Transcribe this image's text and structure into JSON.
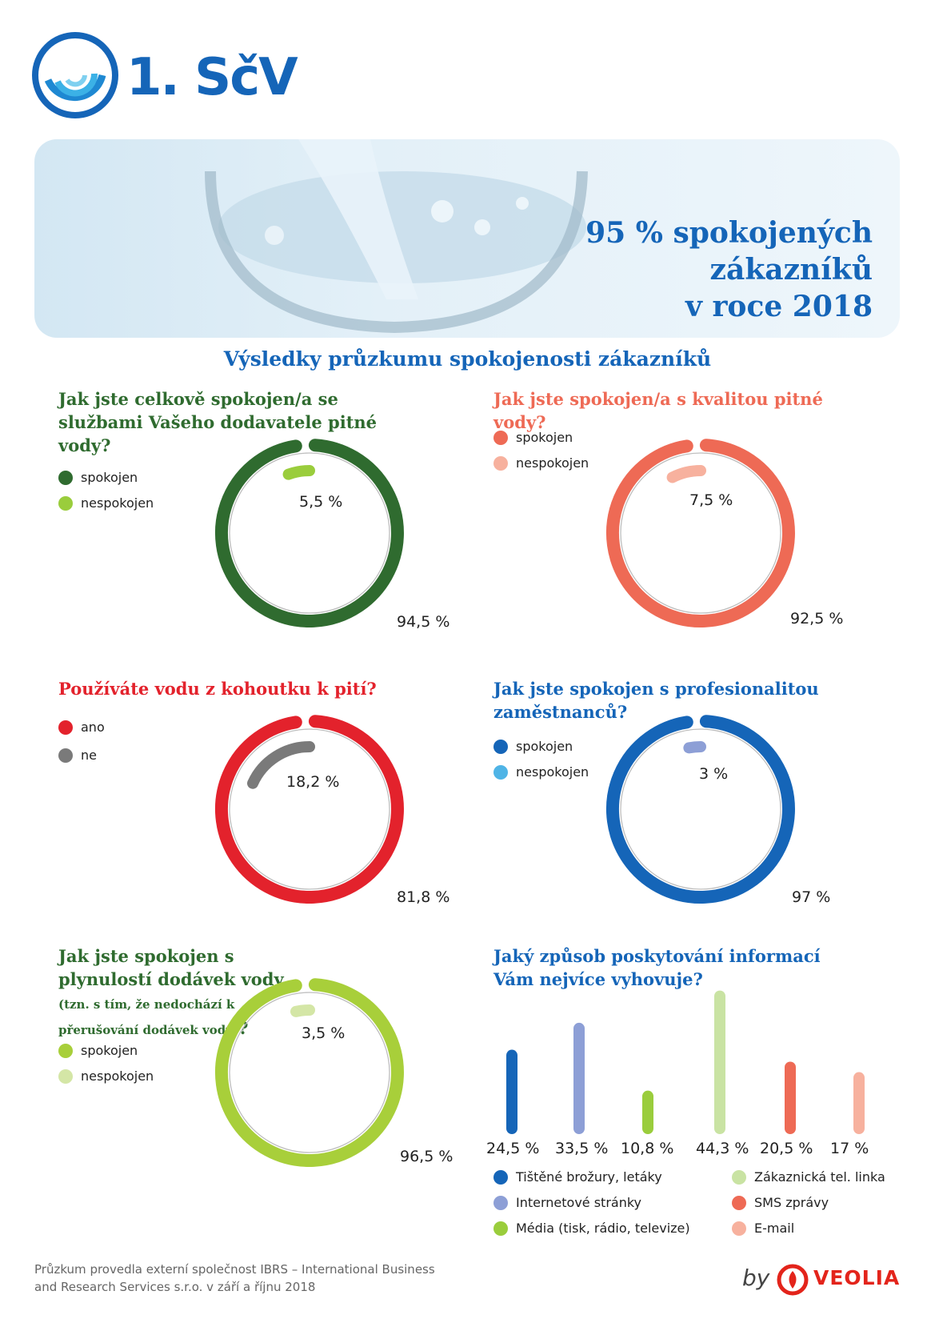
{
  "brand": {
    "logo_text": "1. SčV",
    "colors": {
      "primary": "#1565b8"
    }
  },
  "hero": {
    "title_lines": [
      "95 % spokojených",
      "zákazníků",
      "v roce 2018"
    ]
  },
  "section_title": "Výsledky průzkumu spokojenosti zákazníků",
  "chart_data": [
    {
      "type": "pie",
      "id": "overall",
      "title": "Jak jste celkově spokojen/a se službami Vašeho dodavatele pitné vody?",
      "title_color": "#2f6b2f",
      "categories": [
        "spokojen",
        "nespokojen"
      ],
      "values": [
        94.5,
        5.5
      ],
      "labels": [
        "94,5 %",
        "5,5 %"
      ],
      "colors": [
        "#2f6b2f",
        "#9acd3c"
      ],
      "legend_position": "left"
    },
    {
      "type": "pie",
      "id": "quality",
      "title": "Jak jste spokojen/a s kvalitou pitné vody?",
      "title_color": "#ee6a55",
      "categories": [
        "spokojen",
        "nespokojen"
      ],
      "values": [
        92.5,
        7.5
      ],
      "labels": [
        "92,5 %",
        "7,5 %"
      ],
      "colors": [
        "#ee6a55",
        "#f7b19e"
      ],
      "legend_position": "left"
    },
    {
      "type": "pie",
      "id": "tap",
      "title": "Používáte vodu z kohoutku k pití?",
      "title_color": "#e3222c",
      "categories": [
        "ano",
        "ne"
      ],
      "values": [
        81.8,
        18.2
      ],
      "labels": [
        "81,8 %",
        "18,2 %"
      ],
      "colors": [
        "#e3222c",
        "#7a7a7a"
      ],
      "legend_position": "left"
    },
    {
      "type": "pie",
      "id": "staff",
      "title": "Jak jste spokojen s profesionalitou zaměstnanců?",
      "title_color": "#1565b8",
      "categories": [
        "spokojen",
        "nespokojen"
      ],
      "values": [
        97,
        3
      ],
      "labels": [
        "97 %",
        "3 %"
      ],
      "colors": [
        "#1565b8",
        "#8d9fd6"
      ],
      "legend_colors": [
        "#1565b8",
        "#4fb4e6"
      ],
      "legend_position": "left"
    },
    {
      "type": "pie",
      "id": "supply",
      "title_main": "Jak jste spokojen s plynulostí dodávek vody",
      "title_small": "(tzn. s tím, že nedochází k přerušování dodávek vody)",
      "title_end": "?",
      "title_color": "#2f6b2f",
      "categories": [
        "spokojen",
        "nespokojen"
      ],
      "values": [
        96.5,
        3.5
      ],
      "labels": [
        "96,5 %",
        "3,5 %"
      ],
      "colors": [
        "#a8cf3a",
        "#d4e6a6"
      ],
      "legend_position": "left"
    },
    {
      "type": "bar",
      "id": "info",
      "title": "Jaký způsob poskytování informací Vám nejvíce vyhovuje?",
      "title_color": "#1565b8",
      "categories": [
        "Tištěné brožury, letáky",
        "Internetové stránky",
        "Média (tisk, rádio, televize)",
        "Zákaznická tel. linka",
        "SMS zprávy",
        "E-mail"
      ],
      "values": [
        24.5,
        33.5,
        10.8,
        44.3,
        20.5,
        17
      ],
      "labels": [
        "24,5 %",
        "33,5 %",
        "10,8 %",
        "44,3 %",
        "20,5 %",
        "17 %"
      ],
      "colors": [
        "#1565b8",
        "#8d9fd6",
        "#9acd3c",
        "#c9e3a3",
        "#ee6a55",
        "#f7b19e"
      ],
      "legend_position": "bottom"
    }
  ],
  "footer": {
    "lines": [
      "Průzkum provedla  externí společnost IBRS – International Business",
      "and Research Services s.r.o. v září a říjnu 2018"
    ],
    "by": "by",
    "partner": "VEOLIA"
  }
}
